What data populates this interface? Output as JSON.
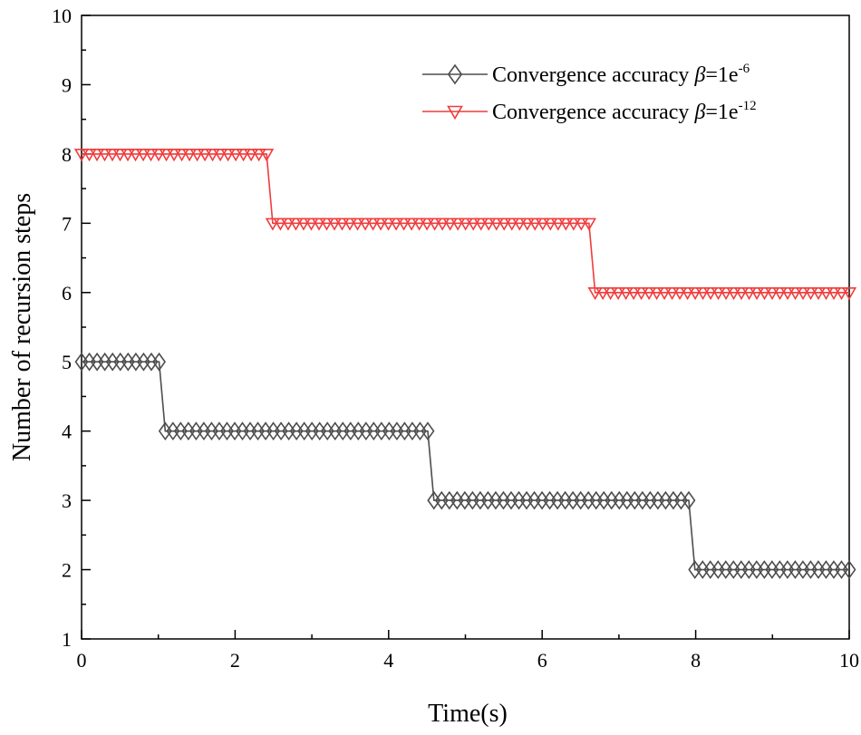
{
  "chart_data": {
    "type": "line",
    "title": "",
    "xlabel": "Time(s)",
    "ylabel": "Number of recursion steps",
    "xlim": [
      0,
      10
    ],
    "ylim": [
      1,
      10
    ],
    "xticks": [
      0,
      2,
      4,
      6,
      8,
      10
    ],
    "yticks": [
      1,
      2,
      3,
      4,
      5,
      6,
      7,
      8,
      9,
      10
    ],
    "xtick_labels": [
      "0",
      "2",
      "4",
      "6",
      "8",
      "10"
    ],
    "ytick_labels": [
      "1",
      "2",
      "3",
      "4",
      "5",
      "6",
      "7",
      "8",
      "9",
      "10"
    ],
    "grid": false,
    "legend_position": "top-right",
    "series": [
      {
        "name": "Convergence accuracy β=1e-6",
        "legend_prefix": "Convergence accuracy ",
        "legend_symbol": "β",
        "legend_value": "=1e",
        "legend_exponent": "-6",
        "color": "#4d4d4d",
        "marker": "diamond",
        "step_times": [
          0,
          1.05,
          4.55,
          7.95,
          10
        ],
        "step_values": [
          5,
          4,
          3,
          2
        ],
        "marker_interval": 0.1
      },
      {
        "name": "Convergence accuracy β=1e-12",
        "legend_prefix": "Convergence accuracy ",
        "legend_symbol": "β",
        "legend_value": "=1e",
        "legend_exponent": "-12",
        "color": "#f03c3c",
        "marker": "triangle-down",
        "step_times": [
          0,
          2.45,
          6.65,
          10
        ],
        "step_values": [
          8,
          7,
          6
        ],
        "marker_interval": 0.1
      }
    ]
  }
}
